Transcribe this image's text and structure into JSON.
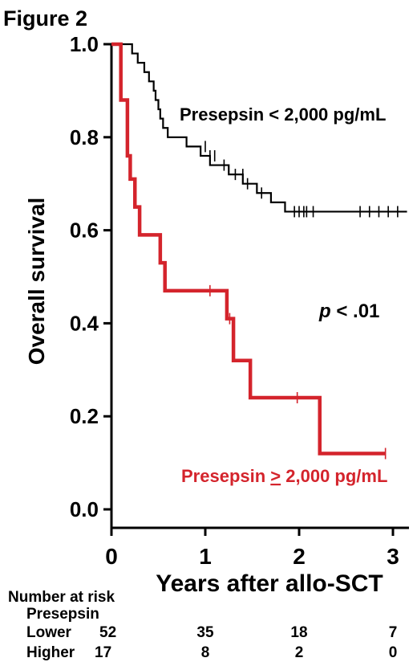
{
  "figure_label": "Figure 2",
  "chart_data": {
    "type": "line",
    "subtype": "kaplan-meier",
    "xlabel": "Years after allo-SCT",
    "ylabel": "Overall survival",
    "xlim": [
      0,
      3.2
    ],
    "ylim": [
      0,
      1.0
    ],
    "x_ticks": [
      "0",
      "1",
      "2",
      "3"
    ],
    "y_ticks": [
      "0.0",
      "0.2",
      "0.4",
      "0.6",
      "0.8",
      "1.0"
    ],
    "annotation": {
      "text_italic": "p",
      "text": " < .01"
    },
    "series": [
      {
        "name": "Presepsin < 2,000 pg/mL",
        "color": "#000000",
        "steps": [
          [
            0,
            1.0
          ],
          [
            0.22,
            0.98
          ],
          [
            0.28,
            0.96
          ],
          [
            0.35,
            0.94
          ],
          [
            0.4,
            0.92
          ],
          [
            0.45,
            0.9
          ],
          [
            0.47,
            0.88
          ],
          [
            0.5,
            0.86
          ],
          [
            0.52,
            0.84
          ],
          [
            0.55,
            0.82
          ],
          [
            0.6,
            0.8
          ],
          [
            0.8,
            0.78
          ],
          [
            0.95,
            0.76
          ],
          [
            1.05,
            0.74
          ],
          [
            1.25,
            0.72
          ],
          [
            1.4,
            0.7
          ],
          [
            1.55,
            0.68
          ],
          [
            1.7,
            0.66
          ],
          [
            1.85,
            0.64
          ],
          [
            3.15,
            0.64
          ]
        ],
        "censored": [
          [
            1.0,
            0.78
          ],
          [
            1.05,
            0.76
          ],
          [
            1.1,
            0.76
          ],
          [
            1.2,
            0.74
          ],
          [
            1.32,
            0.72
          ],
          [
            1.4,
            0.72
          ],
          [
            1.45,
            0.7
          ],
          [
            1.6,
            0.68
          ],
          [
            1.95,
            0.64
          ],
          [
            2.0,
            0.64
          ],
          [
            2.05,
            0.64
          ],
          [
            2.08,
            0.64
          ],
          [
            2.15,
            0.64
          ],
          [
            2.65,
            0.64
          ],
          [
            2.75,
            0.64
          ],
          [
            2.85,
            0.64
          ],
          [
            2.95,
            0.64
          ],
          [
            3.05,
            0.64
          ]
        ]
      },
      {
        "name": "Presepsin ≥ 2,000 pg/mL",
        "label_prefix": "Presepsin ",
        "label_sign": ">",
        "label_suffix": " 2,000 pg/mL",
        "color": "#d4242c",
        "steps": [
          [
            0,
            1.0
          ],
          [
            0.1,
            0.88
          ],
          [
            0.17,
            0.76
          ],
          [
            0.2,
            0.71
          ],
          [
            0.25,
            0.65
          ],
          [
            0.3,
            0.59
          ],
          [
            0.52,
            0.53
          ],
          [
            0.57,
            0.47
          ],
          [
            1.23,
            0.41
          ],
          [
            1.3,
            0.32
          ],
          [
            1.48,
            0.24
          ],
          [
            2.22,
            0.12
          ],
          [
            2.92,
            0.12
          ]
        ],
        "censored": [
          [
            1.05,
            0.47
          ],
          [
            1.26,
            0.41
          ],
          [
            1.98,
            0.24
          ],
          [
            2.92,
            0.12
          ]
        ]
      }
    ]
  },
  "risk_table": {
    "title": "Number at risk",
    "subtitle": "Presepsin",
    "rows": [
      {
        "label": "Lower",
        "values": [
          "52",
          "35",
          "18",
          "7"
        ]
      },
      {
        "label": "Higher",
        "values": [
          "17",
          "8",
          "2",
          "0"
        ]
      }
    ]
  }
}
